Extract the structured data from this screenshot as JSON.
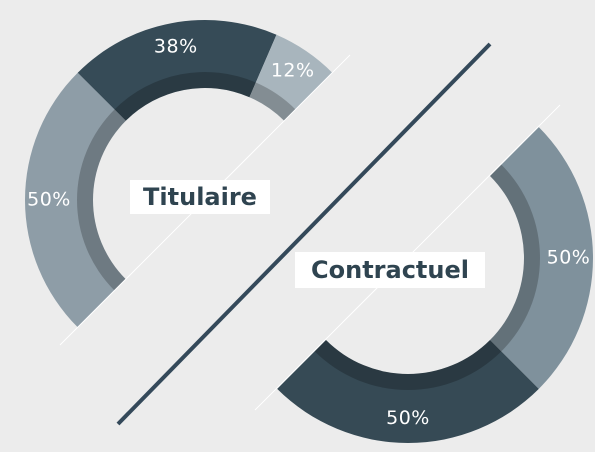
{
  "chart_data": [
    {
      "type": "donut",
      "title": "Titulaire",
      "categories": [
        null,
        null,
        null
      ],
      "values": [
        50,
        38,
        12
      ],
      "value_labels": [
        "50%",
        "38%",
        "12%"
      ],
      "colors": [
        "#8e9da7",
        "#364b57",
        "#a8b5bd"
      ]
    },
    {
      "type": "donut",
      "title": "Contractuel",
      "categories": [
        null,
        null
      ],
      "values": [
        50,
        50
      ],
      "value_labels": [
        "50%",
        "50%"
      ],
      "colors": [
        "#7f919c",
        "#364a55"
      ]
    }
  ]
}
